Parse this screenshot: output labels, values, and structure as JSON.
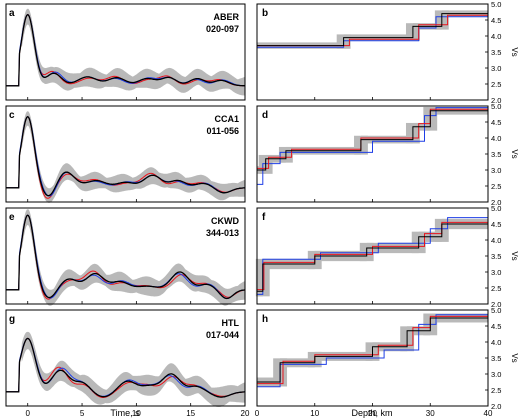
{
  "colors": {
    "band": "#b9b9b9",
    "red": "#e8141c",
    "blue": "#1f3fe6",
    "black": "#000000"
  },
  "left_axis": {
    "xlabel": "Time, s",
    "xlim": [
      -2,
      20
    ],
    "xticks": [
      "0",
      "5",
      "10",
      "15",
      "20"
    ],
    "ylim": [
      -0.8,
      4.6
    ]
  },
  "right_axis": {
    "xlabel": "Depth, km",
    "ylabel": "Vs",
    "xlim": [
      0,
      40
    ],
    "xticks": [
      "0",
      "10",
      "20",
      "30",
      "40"
    ],
    "ylim": [
      2.0,
      5.0
    ],
    "yticks": [
      "2.0",
      "2.5",
      "3.0",
      "3.5",
      "4.0",
      "4.5",
      "5.0"
    ]
  },
  "chart_data": [
    {
      "type": "line",
      "panel": "a",
      "station": "ABER",
      "range": "020-097",
      "note": "receiver function waveforms: observed (black) with uncertainty band (gray), fits (red, blue)"
    },
    {
      "type": "line",
      "panel": "b",
      "note": "velocity model, Vs step profiles vs depth"
    },
    {
      "type": "line",
      "panel": "c",
      "station": "CCA1",
      "range": "011-056"
    },
    {
      "type": "line",
      "panel": "d"
    },
    {
      "type": "line",
      "panel": "e",
      "station": "CKWD",
      "range": "344-013"
    },
    {
      "type": "line",
      "panel": "f"
    },
    {
      "type": "line",
      "panel": "g",
      "station": "HTL",
      "range": "017-044"
    },
    {
      "type": "line",
      "panel": "h"
    }
  ],
  "panels": [
    {
      "left": {
        "letter": "a",
        "station": "ABER",
        "range": "020-097",
        "peak": 4.0,
        "sigma": 0.6,
        "osc": [
          [
            2.4,
            0.7,
            0.7
          ],
          [
            5.5,
            0.5,
            0.9
          ],
          [
            8.2,
            0.45,
            0.8
          ],
          [
            11.0,
            0.4,
            0.8
          ],
          [
            13.0,
            0.45,
            0.7
          ],
          [
            15.6,
            0.4,
            0.7
          ],
          [
            17.8,
            0.3,
            0.7
          ]
        ],
        "band": 0.55
      },
      "right": {
        "letter": "b",
        "band_half": 0.1,
        "black": [
          [
            0,
            3.7
          ],
          [
            15,
            3.7
          ],
          [
            15,
            3.95
          ],
          [
            27,
            3.95
          ],
          [
            27,
            4.3
          ],
          [
            32,
            4.3
          ],
          [
            32,
            4.7
          ],
          [
            40,
            4.7
          ]
        ],
        "red": [
          [
            0,
            3.7
          ],
          [
            16,
            3.7
          ],
          [
            16,
            3.9
          ],
          [
            28,
            3.9
          ],
          [
            28,
            4.35
          ],
          [
            33,
            4.35
          ],
          [
            33,
            4.65
          ],
          [
            40,
            4.65
          ]
        ],
        "blue": [
          [
            0,
            3.65
          ],
          [
            15,
            3.65
          ],
          [
            15,
            3.85
          ],
          [
            28,
            3.85
          ],
          [
            28,
            4.25
          ],
          [
            31,
            4.25
          ],
          [
            31,
            4.6
          ],
          [
            40,
            4.6
          ]
        ]
      }
    },
    {
      "left": {
        "letter": "c",
        "station": "CCA1",
        "range": "011-056",
        "peak": 4.0,
        "sigma": 0.6,
        "osc": [
          [
            2.0,
            -0.6,
            0.6
          ],
          [
            3.5,
            0.9,
            0.8
          ],
          [
            6.3,
            0.4,
            0.9
          ],
          [
            9.0,
            0.3,
            0.8
          ],
          [
            11.5,
            0.7,
            0.8
          ],
          [
            13.8,
            0.4,
            0.7
          ],
          [
            16.2,
            0.25,
            0.8
          ],
          [
            18.0,
            -0.3,
            0.7
          ]
        ],
        "band": 0.5
      },
      "right": {
        "letter": "d",
        "band_half": 0.12,
        "black": [
          [
            0,
            3.0
          ],
          [
            1.5,
            3.0
          ],
          [
            1.5,
            3.35
          ],
          [
            5,
            3.35
          ],
          [
            5,
            3.6
          ],
          [
            18,
            3.6
          ],
          [
            18,
            3.95
          ],
          [
            27,
            3.95
          ],
          [
            27,
            4.35
          ],
          [
            30,
            4.35
          ],
          [
            30,
            4.85
          ],
          [
            40,
            4.85
          ]
        ],
        "red": [
          [
            0,
            3.05
          ],
          [
            2,
            3.05
          ],
          [
            2,
            3.4
          ],
          [
            6,
            3.4
          ],
          [
            6,
            3.65
          ],
          [
            18,
            3.65
          ],
          [
            18,
            4.0
          ],
          [
            28,
            4.0
          ],
          [
            28,
            4.45
          ],
          [
            30,
            4.45
          ],
          [
            30,
            4.9
          ],
          [
            40,
            4.9
          ]
        ],
        "blue": [
          [
            0,
            2.55
          ],
          [
            1,
            2.55
          ],
          [
            1,
            3.2
          ],
          [
            4,
            3.2
          ],
          [
            4,
            3.55
          ],
          [
            20,
            3.55
          ],
          [
            20,
            3.9
          ],
          [
            29,
            3.9
          ],
          [
            29,
            4.7
          ],
          [
            31,
            4.7
          ],
          [
            31,
            4.95
          ],
          [
            40,
            4.95
          ]
        ]
      }
    },
    {
      "left": {
        "letter": "e",
        "station": "CKWD",
        "range": "344-013",
        "peak": 4.2,
        "sigma": 0.6,
        "osc": [
          [
            2.0,
            -0.5,
            0.6
          ],
          [
            3.8,
            0.6,
            0.8
          ],
          [
            6.2,
            0.9,
            0.8
          ],
          [
            8.5,
            0.45,
            0.8
          ],
          [
            11.0,
            0.2,
            0.9
          ],
          [
            14.0,
            1.0,
            0.8
          ],
          [
            16.5,
            0.3,
            0.7
          ],
          [
            18.3,
            -0.5,
            0.6
          ]
        ],
        "band": 0.55
      },
      "right": {
        "letter": "f",
        "band_half": 0.16,
        "black": [
          [
            0,
            2.4
          ],
          [
            1,
            2.4
          ],
          [
            1,
            3.25
          ],
          [
            10,
            3.25
          ],
          [
            10,
            3.5
          ],
          [
            19,
            3.5
          ],
          [
            19,
            3.75
          ],
          [
            28,
            3.75
          ],
          [
            28,
            4.1
          ],
          [
            32,
            4.1
          ],
          [
            32,
            4.5
          ],
          [
            40,
            4.5
          ]
        ],
        "red": [
          [
            0,
            2.45
          ],
          [
            1.2,
            2.45
          ],
          [
            1.2,
            3.3
          ],
          [
            10,
            3.3
          ],
          [
            10,
            3.55
          ],
          [
            20,
            3.55
          ],
          [
            20,
            3.8
          ],
          [
            29,
            3.8
          ],
          [
            29,
            4.2
          ],
          [
            32,
            4.2
          ],
          [
            32,
            4.55
          ],
          [
            40,
            4.55
          ]
        ],
        "blue": [
          [
            0,
            2.3
          ],
          [
            1,
            2.3
          ],
          [
            1,
            3.4
          ],
          [
            11,
            3.4
          ],
          [
            11,
            3.6
          ],
          [
            21,
            3.6
          ],
          [
            21,
            3.9
          ],
          [
            30,
            3.9
          ],
          [
            30,
            4.35
          ],
          [
            33,
            4.35
          ],
          [
            33,
            4.7
          ],
          [
            40,
            4.7
          ]
        ]
      }
    },
    {
      "left": {
        "letter": "g",
        "station": "HTL",
        "range": "017-044",
        "peak": 3.0,
        "sigma": 0.7,
        "osc": [
          [
            3.0,
            1.2,
            0.8
          ],
          [
            5.0,
            0.5,
            0.7
          ],
          [
            7.0,
            -0.3,
            0.8
          ],
          [
            9.2,
            0.6,
            0.8
          ],
          [
            11.2,
            0.3,
            0.7
          ],
          [
            13.2,
            1.0,
            0.8
          ],
          [
            15.5,
            0.3,
            0.7
          ],
          [
            17.8,
            -0.3,
            0.8
          ]
        ],
        "band": 0.6
      },
      "right": {
        "letter": "h",
        "band_half": 0.14,
        "black": [
          [
            0,
            2.75
          ],
          [
            4,
            2.75
          ],
          [
            4,
            3.35
          ],
          [
            10,
            3.35
          ],
          [
            10,
            3.55
          ],
          [
            20,
            3.55
          ],
          [
            20,
            3.85
          ],
          [
            26,
            3.85
          ],
          [
            26,
            4.35
          ],
          [
            30,
            4.35
          ],
          [
            30,
            4.75
          ],
          [
            40,
            4.75
          ]
        ],
        "red": [
          [
            0,
            2.7
          ],
          [
            4.5,
            2.7
          ],
          [
            4.5,
            3.4
          ],
          [
            10,
            3.4
          ],
          [
            10,
            3.6
          ],
          [
            21,
            3.6
          ],
          [
            21,
            3.9
          ],
          [
            27,
            3.9
          ],
          [
            27,
            4.45
          ],
          [
            30,
            4.45
          ],
          [
            30,
            4.8
          ],
          [
            40,
            4.8
          ]
        ],
        "blue": [
          [
            0,
            2.6
          ],
          [
            4,
            2.6
          ],
          [
            4,
            3.3
          ],
          [
            12,
            3.3
          ],
          [
            12,
            3.5
          ],
          [
            22,
            3.5
          ],
          [
            22,
            3.75
          ],
          [
            28,
            3.75
          ],
          [
            28,
            4.55
          ],
          [
            31,
            4.55
          ],
          [
            31,
            4.85
          ],
          [
            40,
            4.85
          ]
        ]
      }
    }
  ]
}
